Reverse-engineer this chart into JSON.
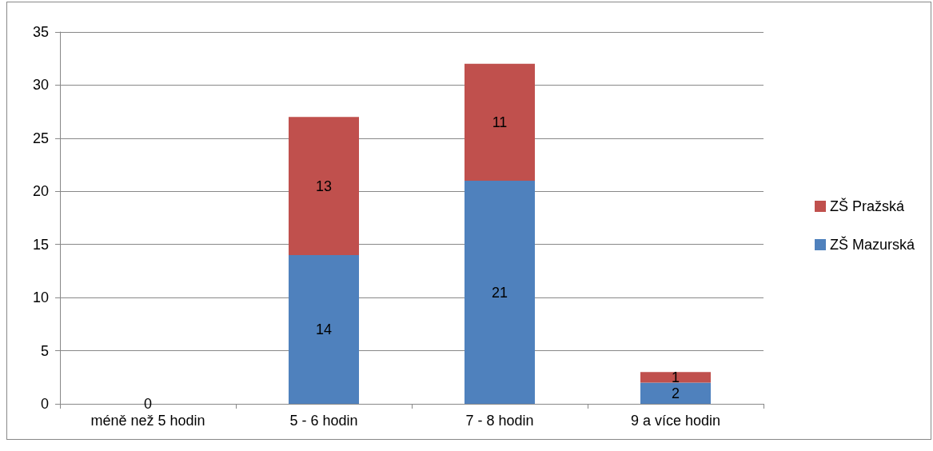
{
  "chart_data": {
    "type": "bar",
    "stacked": true,
    "categories": [
      "méně než 5 hodin",
      "5 - 6 hodin",
      "7 - 8 hodin",
      "9 a více hodin"
    ],
    "series": [
      {
        "name": "ZŠ Mazurská",
        "color": "#4f81bd",
        "values": [
          0,
          14,
          21,
          2
        ],
        "value_labels": [
          "0",
          "14",
          "21",
          "2"
        ]
      },
      {
        "name": "ZŠ Pražská",
        "color": "#c0504d",
        "values": [
          0,
          13,
          11,
          1
        ],
        "value_labels": [
          null,
          "13",
          "11",
          "1"
        ]
      }
    ],
    "ylim": [
      0,
      35
    ],
    "yticks": [
      0,
      5,
      10,
      15,
      20,
      25,
      30,
      35
    ],
    "grid": "y",
    "legend": "right"
  }
}
